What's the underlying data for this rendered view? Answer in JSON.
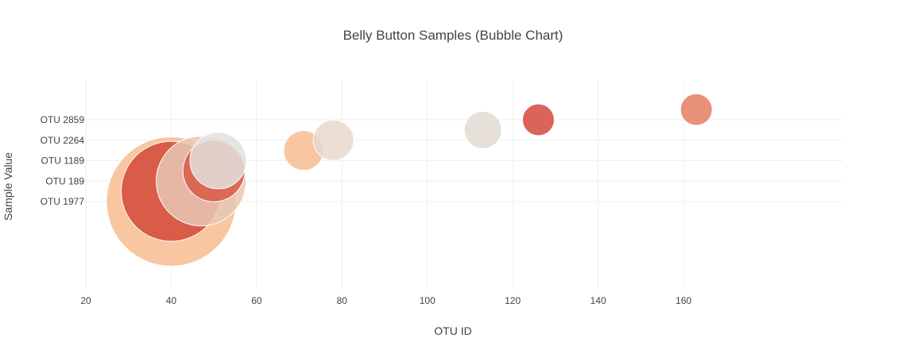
{
  "chart_data": {
    "type": "scatter",
    "title": "Belly Button Samples (Bubble Chart)",
    "xlabel": "OTU ID",
    "ylabel": "Sample Value",
    "xlim": [
      17,
      175
    ],
    "x_ticks": [
      20,
      40,
      60,
      80,
      100,
      120,
      140,
      160
    ],
    "y_categories": [
      "OTU 1977",
      "OTU 189",
      "OTU 1189",
      "OTU 2264",
      "OTU 2859"
    ],
    "grid": true,
    "legend": "none",
    "points": [
      {
        "x": 40,
        "y": 0,
        "size": 163,
        "color": "#F7BC91"
      },
      {
        "x": 40,
        "y": 0.5,
        "size": 126,
        "color": "#D4493A"
      },
      {
        "x": 47,
        "y": 1,
        "size": 113,
        "color": "#E8C7B4"
      },
      {
        "x": 50,
        "y": 1.5,
        "size": 78,
        "color": "#D85B45"
      },
      {
        "x": 51,
        "y": 2,
        "size": 71,
        "color": "#E3E0DD"
      },
      {
        "x": 71,
        "y": 2.5,
        "size": 50,
        "color": "#F7BC91"
      },
      {
        "x": 78,
        "y": 3,
        "size": 51,
        "color": "#E8D8CB"
      },
      {
        "x": 113,
        "y": 3.5,
        "size": 47,
        "color": "#E3DAD2"
      },
      {
        "x": 126,
        "y": 4,
        "size": 40,
        "color": "#D4493A"
      },
      {
        "x": 163,
        "y": 4.5,
        "size": 40,
        "color": "#E57E61"
      }
    ]
  }
}
